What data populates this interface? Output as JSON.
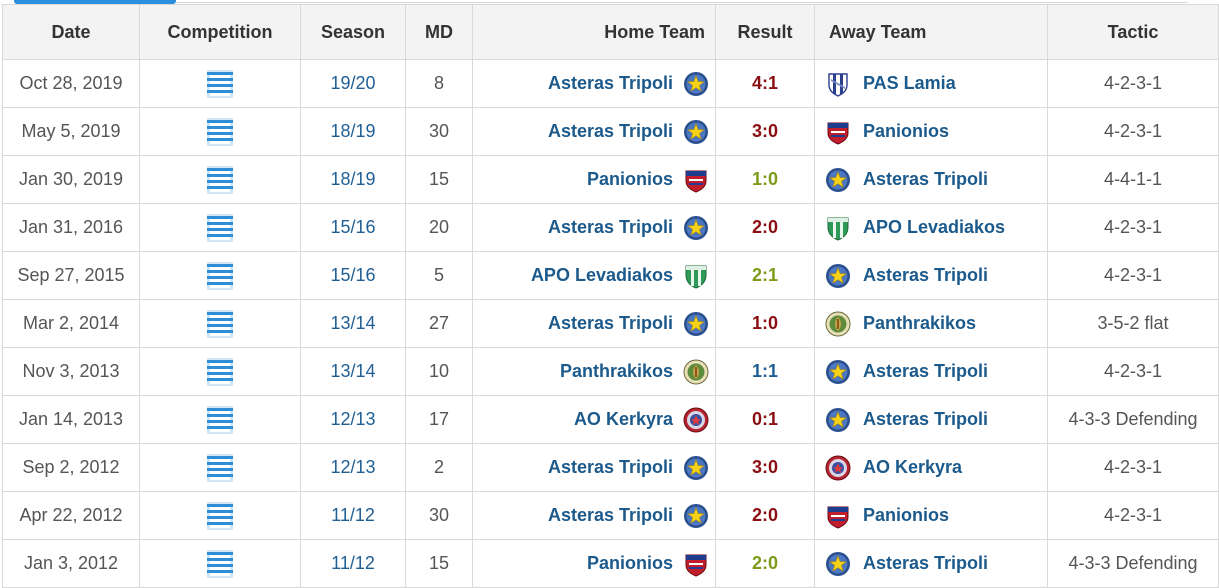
{
  "headers": {
    "date": "Date",
    "competition": "Competition",
    "season": "Season",
    "md": "MD",
    "home": "Home Team",
    "result": "Result",
    "away": "Away Team",
    "tactic": "Tactic"
  },
  "rows": [
    {
      "date": "Oct 28, 2019",
      "season": "19/20",
      "md": "8",
      "home": "Asteras Tripoli",
      "home_crest": "asteras-crest",
      "result": "4:1",
      "result_color": "#8a0e12",
      "away": "PAS Lamia",
      "away_crest": "pas-lamia-crest",
      "tactic": "4-2-3-1"
    },
    {
      "date": "May 5, 2019",
      "season": "18/19",
      "md": "30",
      "home": "Asteras Tripoli",
      "home_crest": "asteras-crest",
      "result": "3:0",
      "result_color": "#8a0e12",
      "away": "Panionios",
      "away_crest": "panionios-crest",
      "tactic": "4-2-3-1"
    },
    {
      "date": "Jan 30, 2019",
      "season": "18/19",
      "md": "15",
      "home": "Panionios",
      "home_crest": "panionios-crest",
      "result": "1:0",
      "result_color": "#7d9a1a",
      "away": "Asteras Tripoli",
      "away_crest": "asteras-crest",
      "tactic": "4-4-1-1"
    },
    {
      "date": "Jan 31, 2016",
      "season": "15/16",
      "md": "20",
      "home": "Asteras Tripoli",
      "home_crest": "asteras-crest",
      "result": "2:0",
      "result_color": "#8a0e12",
      "away": "APO Levadiakos",
      "away_crest": "levadiakos-crest",
      "tactic": "4-2-3-1"
    },
    {
      "date": "Sep 27, 2015",
      "season": "15/16",
      "md": "5",
      "home": "APO Levadiakos",
      "home_crest": "levadiakos-crest",
      "result": "2:1",
      "result_color": "#7d9a1a",
      "away": "Asteras Tripoli",
      "away_crest": "asteras-crest",
      "tactic": "4-2-3-1"
    },
    {
      "date": "Mar 2, 2014",
      "season": "13/14",
      "md": "27",
      "home": "Asteras Tripoli",
      "home_crest": "asteras-crest",
      "result": "1:0",
      "result_color": "#8a0e12",
      "away": "Panthrakikos",
      "away_crest": "panthrakikos-crest",
      "tactic": "3-5-2 flat"
    },
    {
      "date": "Nov 3, 2013",
      "season": "13/14",
      "md": "10",
      "home": "Panthrakikos",
      "home_crest": "panthrakikos-crest",
      "result": "1:1",
      "result_color": "#1f5f96",
      "away": "Asteras Tripoli",
      "away_crest": "asteras-crest",
      "tactic": "4-2-3-1"
    },
    {
      "date": "Jan 14, 2013",
      "season": "12/13",
      "md": "17",
      "home": "AO Kerkyra",
      "home_crest": "kerkyra-crest",
      "result": "0:1",
      "result_color": "#8a0e12",
      "away": "Asteras Tripoli",
      "away_crest": "asteras-crest",
      "tactic": "4-3-3 Defending"
    },
    {
      "date": "Sep 2, 2012",
      "season": "12/13",
      "md": "2",
      "home": "Asteras Tripoli",
      "home_crest": "asteras-crest",
      "result": "3:0",
      "result_color": "#8a0e12",
      "away": "AO Kerkyra",
      "away_crest": "kerkyra-crest",
      "tactic": "4-2-3-1"
    },
    {
      "date": "Apr 22, 2012",
      "season": "11/12",
      "md": "30",
      "home": "Asteras Tripoli",
      "home_crest": "asteras-crest",
      "result": "2:0",
      "result_color": "#8a0e12",
      "away": "Panionios",
      "away_crest": "panionios-crest",
      "tactic": "4-2-3-1"
    },
    {
      "date": "Jan 3, 2012",
      "season": "11/12",
      "md": "15",
      "home": "Panionios",
      "home_crest": "panionios-crest",
      "result": "2:0",
      "result_color": "#7d9a1a",
      "away": "Asteras Tripoli",
      "away_crest": "asteras-crest",
      "tactic": "4-3-3 Defending"
    }
  ],
  "competition_icon": "greece-flag-icon",
  "colors": {
    "team_link": "#1c5a8c",
    "season_link": "#1f5f96",
    "header_bg": "#f3f3f3",
    "tab_accent": "#2b8fe0"
  }
}
